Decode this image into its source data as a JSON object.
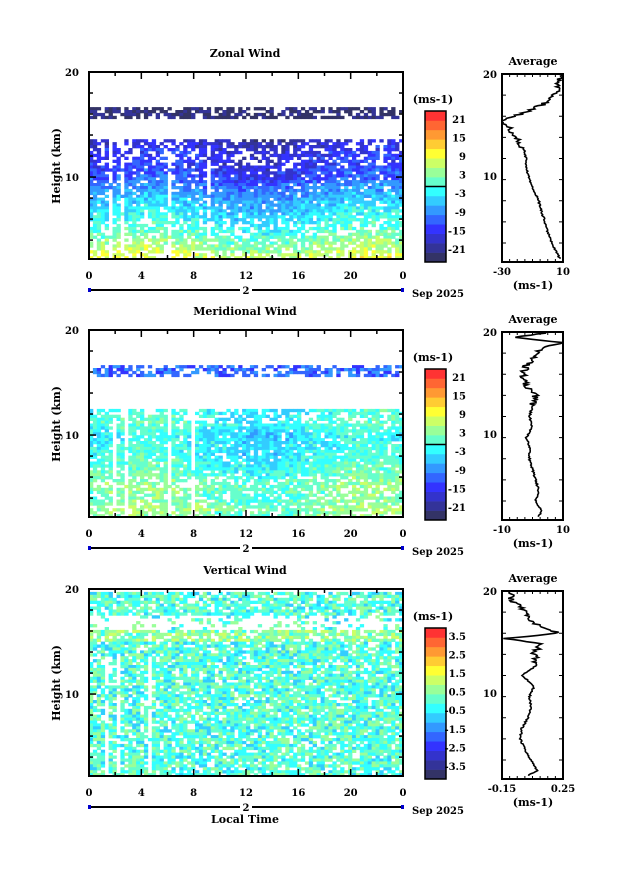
{
  "chart_data": [
    {
      "type": "heatmap",
      "title": "Zonal Wind",
      "ylabel": "Height (km)",
      "ylim": [
        2.2,
        20
      ],
      "yticks": [
        "20",
        "10"
      ],
      "xticks": [
        "0",
        "4",
        "8",
        "12",
        "16",
        "20",
        "0"
      ],
      "xlim_hours": [
        0,
        24
      ],
      "day_label": "2",
      "month_label": "Sep 2025",
      "colorbar": {
        "unit": "(ms-1)",
        "labels": [
          "21",
          "15",
          "9",
          "3",
          "-3",
          "-9",
          "-15",
          "-21"
        ],
        "range": [
          -24,
          24
        ]
      },
      "profile_km_value": [
        [
          2.5,
          8
        ],
        [
          3,
          6
        ],
        [
          4,
          3
        ],
        [
          5,
          0
        ],
        [
          6,
          -2
        ],
        [
          7,
          -4
        ],
        [
          8,
          -6
        ],
        [
          9,
          -9
        ],
        [
          10,
          -12
        ],
        [
          11,
          -14
        ],
        [
          12,
          -14
        ],
        [
          13,
          -16
        ],
        [
          14,
          -20
        ],
        [
          15,
          -26
        ],
        [
          15.6,
          -30
        ],
        [
          16.2,
          -18
        ],
        [
          16.8,
          -8
        ],
        [
          17.5,
          2
        ],
        [
          18.5,
          6
        ],
        [
          19.5,
          8
        ],
        [
          20,
          10
        ]
      ],
      "data_bands_km": [
        [
          2.2,
          13.5
        ],
        [
          15.6,
          16.8
        ]
      ],
      "average": {
        "title": "Average",
        "xlim": [
          -30,
          10
        ],
        "xticks": [
          "-30",
          "10"
        ],
        "yticks": [
          "20",
          "10"
        ],
        "unit": "(ms-1)"
      }
    },
    {
      "type": "heatmap",
      "title": "Meridional Wind",
      "ylabel": "Height (km)",
      "ylim": [
        2.2,
        20
      ],
      "yticks": [
        "20",
        "10"
      ],
      "xticks": [
        "0",
        "4",
        "8",
        "12",
        "16",
        "20",
        "0"
      ],
      "xlim_hours": [
        0,
        24
      ],
      "day_label": "2",
      "month_label": "Sep 2025",
      "colorbar": {
        "unit": "(ms-1)",
        "labels": [
          "21",
          "15",
          "9",
          "3",
          "-3",
          "-9",
          "-15",
          "-21"
        ],
        "range": [
          -24,
          24
        ]
      },
      "profile_km_value": [
        [
          2.5,
          2
        ],
        [
          3,
          3
        ],
        [
          4,
          1
        ],
        [
          5,
          2
        ],
        [
          6,
          1
        ],
        [
          7,
          0
        ],
        [
          8,
          -1
        ],
        [
          9,
          -1
        ],
        [
          10,
          -2
        ],
        [
          11,
          0
        ],
        [
          12,
          -1
        ],
        [
          13,
          0
        ],
        [
          14,
          1
        ],
        [
          15,
          -2
        ],
        [
          16,
          -3
        ],
        [
          16.8,
          -2
        ],
        [
          17.5,
          0
        ],
        [
          18.5,
          3
        ],
        [
          19,
          10
        ],
        [
          19.5,
          -6
        ],
        [
          20,
          8
        ]
      ],
      "data_bands_km": [
        [
          2.2,
          12.5
        ],
        [
          15.6,
          16.8
        ]
      ],
      "average": {
        "title": "Average",
        "xlim": [
          -10,
          10
        ],
        "xticks": [
          "-10",
          "10"
        ],
        "yticks": [
          "20",
          "10"
        ],
        "unit": "(ms-1)"
      }
    },
    {
      "type": "heatmap",
      "title": "Vertical Wind",
      "ylabel": "Height (km)",
      "xlabel": "Local Time",
      "ylim": [
        2.2,
        20
      ],
      "yticks": [
        "20",
        "10"
      ],
      "xticks": [
        "0",
        "4",
        "8",
        "12",
        "16",
        "20",
        "0"
      ],
      "xlim_hours": [
        0,
        24
      ],
      "day_label": "2",
      "month_label": "Sep 2025",
      "colorbar": {
        "unit": "(ms-1)",
        "labels": [
          "3.5",
          "2.5",
          "1.5",
          "0.5",
          "-0.5",
          "-1.5",
          "-2.5",
          "-3.5"
        ],
        "range": [
          -4,
          4
        ]
      },
      "profile_km_value": [
        [
          2.5,
          0.02
        ],
        [
          3,
          0.08
        ],
        [
          4,
          0.04
        ],
        [
          5,
          0.0
        ],
        [
          6,
          -0.03
        ],
        [
          7,
          -0.02
        ],
        [
          8,
          0.02
        ],
        [
          9,
          0.04
        ],
        [
          10,
          0.03
        ],
        [
          11,
          0.06
        ],
        [
          12,
          -0.02
        ],
        [
          13,
          0.08
        ],
        [
          14,
          0.06
        ],
        [
          15,
          0.1
        ],
        [
          15.5,
          -0.14
        ],
        [
          16,
          0.22
        ],
        [
          17,
          0.05
        ],
        [
          18,
          0.02
        ],
        [
          19,
          -0.08
        ],
        [
          20,
          -0.1
        ]
      ],
      "data_bands_km": [
        [
          2.2,
          19.8
        ]
      ],
      "average": {
        "title": "Average",
        "xlim": [
          -0.15,
          0.25
        ],
        "xticks": [
          "-0.15",
          "0.25"
        ],
        "yticks": [
          "20",
          "10"
        ],
        "unit": "(ms-1)"
      }
    }
  ],
  "colors": [
    "#333366",
    "#333399",
    "#3333cc",
    "#3333ff",
    "#3366ff",
    "#3399ff",
    "#33ccff",
    "#33ffff",
    "#66ffcc",
    "#99ff99",
    "#ccff66",
    "#ffff33",
    "#ffcc33",
    "#ff9933",
    "#ff6633",
    "#ff3333"
  ]
}
